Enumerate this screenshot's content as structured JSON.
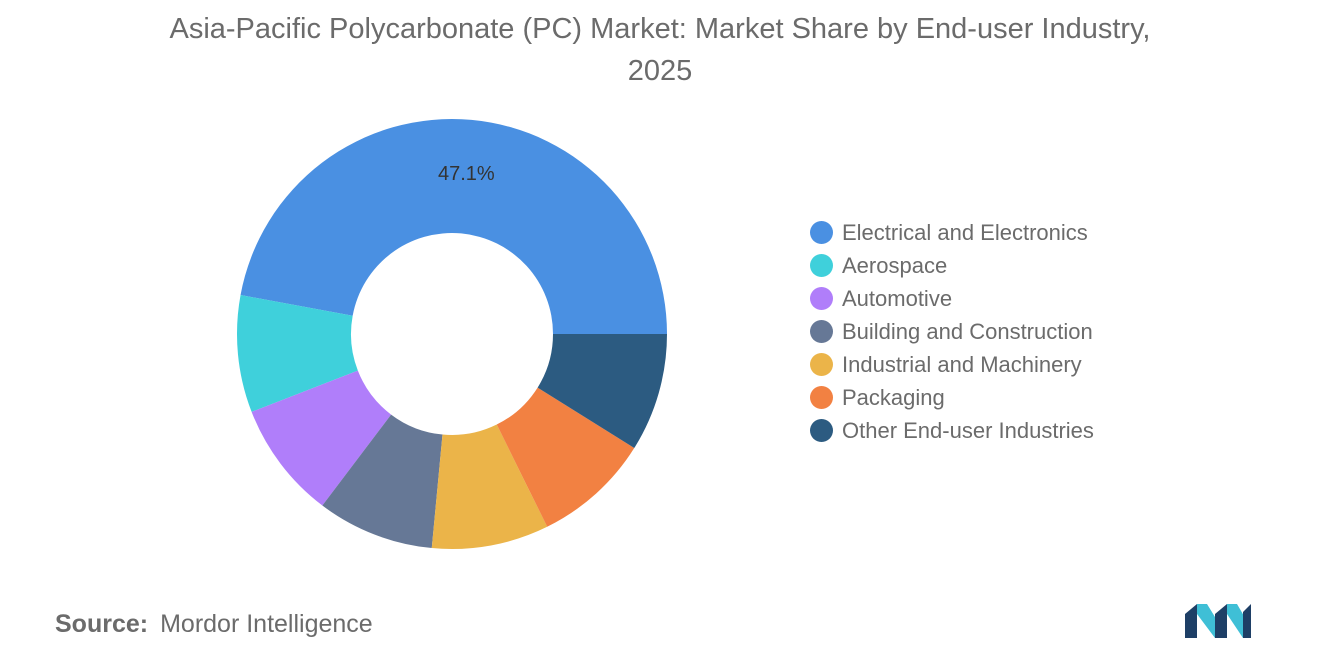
{
  "chart_data": {
    "type": "pie",
    "variant": "donut",
    "title": "Asia-Pacific Polycarbonate (PC) Market: Market Share by End-user Industry, 2025",
    "title_lines": [
      "Asia-Pacific Polycarbonate (PC) Market: Market Share by End-user Industry,",
      "2025"
    ],
    "categories": [
      "Electrical and Electronics",
      "Aerospace",
      "Automotive",
      "Building and Construction",
      "Industrial and Machinery",
      "Packaging",
      "Other End-user Industries"
    ],
    "values": [
      47.1,
      8.8,
      8.8,
      8.8,
      8.8,
      8.8,
      8.9
    ],
    "data_labels": [
      "47.1%",
      "",
      "",
      "",
      "",
      "",
      ""
    ],
    "colors": [
      "#4a90e2",
      "#3fd0db",
      "#b07efa",
      "#667896",
      "#ebb449",
      "#f28142",
      "#2c5b81"
    ],
    "legend_position": "right",
    "start_angle_deg": 0,
    "direction": "counterclockwise"
  },
  "source": {
    "label": "Source:",
    "value": "Mordor Intelligence"
  },
  "logo": {
    "icon": "mordor-intelligence-logo-icon",
    "colors": [
      "#1e3f66",
      "#3fbfd6"
    ]
  }
}
